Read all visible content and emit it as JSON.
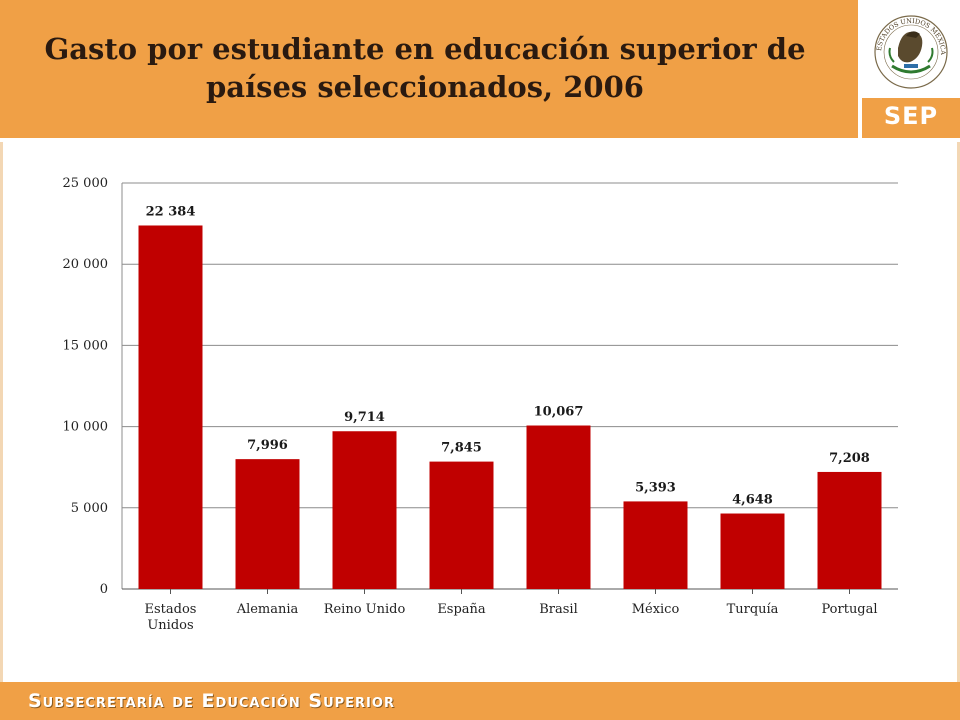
{
  "header": {
    "title_line1": "Gasto por estudiante en educación superior de",
    "title_line2": "países seleccionados, 2006",
    "seal_text": "ESTADOS UNIDOS MEXICANOS",
    "sep_label": "SEP"
  },
  "footer": {
    "text": "Subsecretaría de Educación Superior"
  },
  "colors": {
    "bar": "#C00000",
    "header": "#F0A046",
    "grid": "#8c8c8c"
  },
  "chart_data": {
    "type": "bar",
    "categories": [
      "Estados Unidos",
      "Alemania",
      "Reino Unido",
      "España",
      "Brasil",
      "México",
      "Turquía",
      "Portugal"
    ],
    "category_lines": [
      [
        "Estados",
        "Unidos"
      ],
      [
        "Alemania"
      ],
      [
        "Reino Unido"
      ],
      [
        "España"
      ],
      [
        "Brasil"
      ],
      [
        "México"
      ],
      [
        "Turquía"
      ],
      [
        "Portugal"
      ]
    ],
    "values": [
      22384,
      7996,
      9714,
      7845,
      10067,
      5393,
      4648,
      7208
    ],
    "data_labels": [
      "22 384",
      "7,996",
      "9,714",
      "7,845",
      "10,067",
      "5,393",
      "4,648",
      "7,208"
    ],
    "yticks": [
      0,
      5000,
      10000,
      15000,
      20000,
      25000
    ],
    "ytick_labels": [
      "0",
      "5 000",
      "10 000",
      "15 000",
      "20 000",
      "25 000"
    ],
    "ylim": [
      0,
      25000
    ],
    "grid": true,
    "legend": "none"
  }
}
